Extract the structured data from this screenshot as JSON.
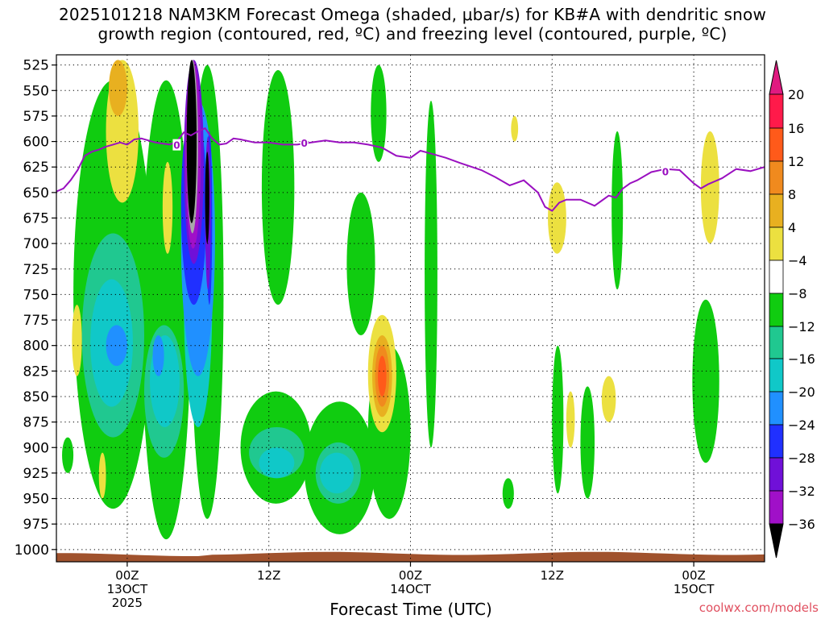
{
  "title_line1": "2025101218 NAM3KM Forecast Omega (shaded, μbar/s) for KB#A with dendritic snow",
  "title_line2": "growth region (contoured, red, ºC) and freezing level (contoured, purple, ºC)",
  "credit": "coolwx.com/models",
  "chart_data": {
    "type": "heatmap",
    "title": "2025101218 NAM3KM Forecast Omega (shaded, μbar/s) for KB#A with dendritic snow growth region (contoured, red, ºC) and freezing level (contoured, purple, ºC)",
    "xlabel": "Forecast Time (UTC)",
    "ylabel": "",
    "x_range_hours": [
      -5,
      45
    ],
    "y_range_mb": [
      515,
      1012
    ],
    "y_ticks": [
      {
        "value": 525,
        "label": "525"
      },
      {
        "value": 550,
        "label": "550"
      },
      {
        "value": 575,
        "label": "575"
      },
      {
        "value": 600,
        "label": "600"
      },
      {
        "value": 625,
        "label": "625"
      },
      {
        "value": 650,
        "label": "650"
      },
      {
        "value": 675,
        "label": "675"
      },
      {
        "value": 700,
        "label": "700"
      },
      {
        "value": 725,
        "label": "725"
      },
      {
        "value": 750,
        "label": "750"
      },
      {
        "value": 775,
        "label": "775"
      },
      {
        "value": 800,
        "label": "800"
      },
      {
        "value": 825,
        "label": "825"
      },
      {
        "value": 850,
        "label": "850"
      },
      {
        "value": 875,
        "label": "875"
      },
      {
        "value": 900,
        "label": "900"
      },
      {
        "value": 925,
        "label": "925"
      },
      {
        "value": 950,
        "label": "950"
      },
      {
        "value": 975,
        "label": "975"
      },
      {
        "value": 1000,
        "label": "1000"
      }
    ],
    "x_ticks": [
      {
        "value": 0,
        "labels": [
          "00Z",
          "13OCT",
          "2025"
        ]
      },
      {
        "value": 10,
        "labels": [
          "12Z"
        ]
      },
      {
        "value": 20,
        "labels": [
          "00Z",
          "14OCT"
        ]
      },
      {
        "value": 30,
        "labels": [
          "12Z"
        ]
      },
      {
        "value": 40,
        "labels": [
          "00Z",
          "15OCT"
        ]
      }
    ],
    "grid": true,
    "colorbar": {
      "levels": [
        "20",
        "16",
        "12",
        "8",
        "4",
        "−4",
        "−8",
        "−12",
        "−16",
        "−20",
        "−24",
        "−28",
        "−32",
        "−36"
      ],
      "colors": [
        "#ff1a4a",
        "#ff5a1a",
        "#f08a1e",
        "#e8b020",
        "#ece040",
        "#ffffff",
        "#10cc10",
        "#20c890",
        "#10c8c8",
        "#2090ff",
        "#2030ff",
        "#7010d8",
        "#a010c8",
        "#a8a8a8",
        "#000000"
      ],
      "top_arrow_color": "#e01a80",
      "bottom_arrow_color": "#000000"
    },
    "freezing_level": {
      "label": "0",
      "color": "#9a10c0",
      "points_hour_mb": [
        [
          -5,
          649
        ],
        [
          -4.5,
          646
        ],
        [
          -4,
          638
        ],
        [
          -3.5,
          628
        ],
        [
          -3,
          614
        ],
        [
          -2.5,
          610
        ],
        [
          -2,
          608
        ],
        [
          -1.5,
          605
        ],
        [
          -1,
          603
        ],
        [
          -0.5,
          601
        ],
        [
          0,
          603
        ],
        [
          0.5,
          598
        ],
        [
          1,
          597
        ],
        [
          1.5,
          599
        ],
        [
          2,
          601
        ],
        [
          2.5,
          602
        ],
        [
          3,
          603
        ],
        [
          3.5,
          600
        ],
        [
          4,
          591
        ],
        [
          4.5,
          594
        ],
        [
          5,
          590
        ],
        [
          5.5,
          587
        ],
        [
          6,
          597
        ],
        [
          6.5,
          603
        ],
        [
          7,
          602
        ],
        [
          7.5,
          597
        ],
        [
          8,
          598
        ],
        [
          9,
          601
        ],
        [
          10,
          601
        ],
        [
          11,
          603
        ],
        [
          12,
          603
        ],
        [
          13,
          601
        ],
        [
          14,
          599
        ],
        [
          15,
          601
        ],
        [
          16,
          601
        ],
        [
          17,
          603
        ],
        [
          18,
          606
        ],
        [
          19,
          614
        ],
        [
          20,
          616
        ],
        [
          20.7,
          609
        ],
        [
          21.5,
          612
        ],
        [
          22.5,
          616
        ],
        [
          23.5,
          621
        ],
        [
          25,
          628
        ],
        [
          26,
          635
        ],
        [
          27,
          643
        ],
        [
          28,
          638
        ],
        [
          29,
          650
        ],
        [
          29.5,
          664
        ],
        [
          30,
          668
        ],
        [
          30.5,
          660
        ],
        [
          31,
          657
        ],
        [
          32,
          657
        ],
        [
          33,
          663
        ],
        [
          33.5,
          658
        ],
        [
          34,
          653
        ],
        [
          34.5,
          655
        ],
        [
          35,
          646
        ],
        [
          35.5,
          641
        ],
        [
          36,
          638
        ],
        [
          37,
          630
        ],
        [
          38,
          627
        ],
        [
          39,
          628
        ],
        [
          40,
          641
        ],
        [
          40.5,
          646
        ],
        [
          41,
          642
        ],
        [
          42,
          636
        ],
        [
          43,
          627
        ],
        [
          44,
          629
        ],
        [
          45,
          625
        ]
      ]
    },
    "omega_regions": [
      {
        "level": "-4",
        "hours": [
          -4.6,
          -3.8
        ],
        "mb": [
          890,
          925
        ]
      },
      {
        "level": "-4",
        "hours": [
          -3.8,
          1.8
        ],
        "mb": [
          540,
          960
        ]
      },
      {
        "level": "-4",
        "hours": [
          1.0,
          4.5
        ],
        "mb": [
          540,
          990
        ]
      },
      {
        "level": "-4",
        "hours": [
          4.5,
          6.8
        ],
        "mb": [
          525,
          970
        ]
      },
      {
        "level": "-4",
        "hours": [
          9.5,
          11.8
        ],
        "mb": [
          530,
          760
        ]
      },
      {
        "level": "-4",
        "hours": [
          8.0,
          13.0
        ],
        "mb": [
          845,
          955
        ]
      },
      {
        "level": "-4",
        "hours": [
          12.5,
          17.5
        ],
        "mb": [
          855,
          985
        ]
      },
      {
        "level": "-4",
        "hours": [
          17.2,
          18.3
        ],
        "mb": [
          525,
          620
        ]
      },
      {
        "level": "-4",
        "hours": [
          15.5,
          17.5
        ],
        "mb": [
          650,
          790
        ]
      },
      {
        "level": "-4",
        "hours": [
          17.0,
          20.0
        ],
        "mb": [
          800,
          970
        ]
      },
      {
        "level": "-4",
        "hours": [
          21.0,
          21.9
        ],
        "mb": [
          560,
          900
        ]
      },
      {
        "level": "-4",
        "hours": [
          26.5,
          27.3
        ],
        "mb": [
          930,
          960
        ]
      },
      {
        "level": "-4",
        "hours": [
          30.0,
          30.8
        ],
        "mb": [
          800,
          945
        ]
      },
      {
        "level": "-4",
        "hours": [
          32.0,
          33.0
        ],
        "mb": [
          840,
          950
        ]
      },
      {
        "level": "-4",
        "hours": [
          34.2,
          35.0
        ],
        "mb": [
          590,
          745
        ]
      },
      {
        "level": "-4",
        "hours": [
          39.9,
          41.8
        ],
        "mb": [
          755,
          915
        ]
      },
      {
        "level": "-8",
        "hours": [
          -3.2,
          1.2
        ],
        "mb": [
          690,
          890
        ]
      },
      {
        "level": "-8",
        "hours": [
          1.2,
          4.0
        ],
        "mb": [
          780,
          910
        ]
      },
      {
        "level": "-8",
        "hours": [
          8.6,
          12.5
        ],
        "mb": [
          880,
          930
        ]
      },
      {
        "level": "-8",
        "hours": [
          13.3,
          16.5
        ],
        "mb": [
          895,
          955
        ]
      },
      {
        "level": "-12",
        "hours": [
          -2.6,
          0.4
        ],
        "mb": [
          735,
          860
        ]
      },
      {
        "level": "-12",
        "hours": [
          1.6,
          3.7
        ],
        "mb": [
          790,
          880
        ]
      },
      {
        "level": "-12",
        "hours": [
          4.0,
          6.0
        ],
        "mb": [
          640,
          880
        ]
      },
      {
        "level": "-12",
        "hours": [
          9.3,
          11.8
        ],
        "mb": [
          900,
          930
        ]
      },
      {
        "level": "-12",
        "hours": [
          13.6,
          16.0
        ],
        "mb": [
          905,
          945
        ]
      },
      {
        "level": "-16",
        "hours": [
          -1.5,
          0.0
        ],
        "mb": [
          780,
          820
        ]
      },
      {
        "level": "-16",
        "hours": [
          1.8,
          2.6
        ],
        "mb": [
          790,
          830
        ]
      },
      {
        "level": "-16",
        "hours": [
          3.8,
          6.2
        ],
        "mb": [
          560,
          830
        ]
      },
      {
        "level": "-20",
        "hours": [
          3.8,
          5.6
        ],
        "mb": [
          565,
          760
        ]
      },
      {
        "level": "-20",
        "hours": [
          5.6,
          6.0
        ],
        "mb": [
          590,
          760
        ]
      },
      {
        "level": "-24",
        "hours": [
          4.0,
          5.4
        ],
        "mb": [
          520,
          720
        ]
      },
      {
        "level": "-24",
        "hours": [
          5.5,
          5.9
        ],
        "mb": [
          595,
          745
        ]
      },
      {
        "level": "-28",
        "hours": [
          4.1,
          5.2
        ],
        "mb": [
          520,
          705
        ]
      },
      {
        "level": "-32",
        "hours": [
          4.2,
          5.0
        ],
        "mb": [
          520,
          690
        ]
      },
      {
        "level": "-36",
        "hours": [
          4.2,
          4.9
        ],
        "mb": [
          520,
          680
        ]
      },
      {
        "level": "-36",
        "hours": [
          5.5,
          5.8
        ],
        "mb": [
          610,
          700
        ]
      },
      {
        "level": "4",
        "hours": [
          -1.5,
          0.8
        ],
        "mb": [
          520,
          660
        ]
      },
      {
        "level": "4",
        "hours": [
          -3.9,
          -3.2
        ],
        "mb": [
          760,
          830
        ]
      },
      {
        "level": "4",
        "hours": [
          -2.0,
          -1.5
        ],
        "mb": [
          905,
          950
        ]
      },
      {
        "level": "4",
        "hours": [
          2.5,
          3.2
        ],
        "mb": [
          620,
          710
        ]
      },
      {
        "level": "4",
        "hours": [
          17.0,
          19.0
        ],
        "mb": [
          770,
          885
        ]
      },
      {
        "level": "4",
        "hours": [
          29.7,
          31.0
        ],
        "mb": [
          640,
          710
        ]
      },
      {
        "level": "4",
        "hours": [
          31.0,
          31.6
        ],
        "mb": [
          845,
          900
        ]
      },
      {
        "level": "4",
        "hours": [
          33.5,
          34.5
        ],
        "mb": [
          830,
          875
        ]
      },
      {
        "level": "4",
        "hours": [
          27.1,
          27.6
        ],
        "mb": [
          575,
          600
        ]
      },
      {
        "level": "4",
        "hours": [
          40.5,
          41.8
        ],
        "mb": [
          590,
          700
        ]
      },
      {
        "level": "8",
        "hours": [
          -1.3,
          0.0
        ],
        "mb": [
          520,
          575
        ]
      },
      {
        "level": "8",
        "hours": [
          17.3,
          18.7
        ],
        "mb": [
          790,
          870
        ]
      },
      {
        "level": "12",
        "hours": [
          17.5,
          18.5
        ],
        "mb": [
          800,
          860
        ]
      },
      {
        "level": "16",
        "hours": [
          17.7,
          18.3
        ],
        "mb": [
          810,
          850
        ]
      }
    ],
    "ground_surface_color": "#a0522d"
  }
}
